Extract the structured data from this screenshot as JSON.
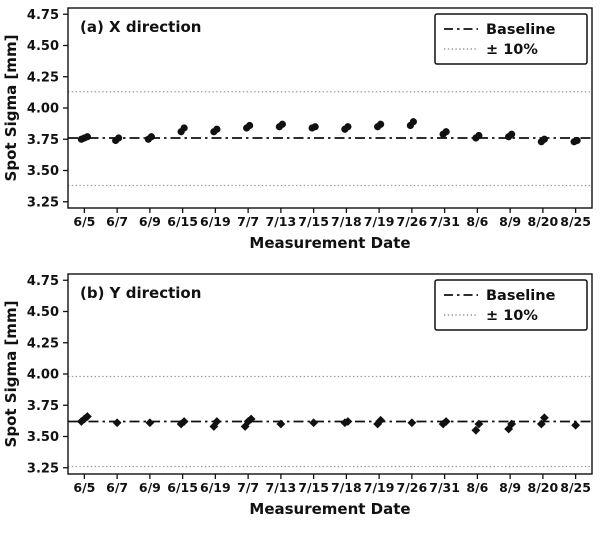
{
  "figure": {
    "background": "#ffffff",
    "text_color": "#111111",
    "marker_color": "#111111",
    "baseline_color": "#111111",
    "band_color": "#9a9a9a"
  },
  "chart_data": [
    {
      "id": "a",
      "type": "scatter",
      "panel_label": "(a) X direction",
      "marker": "circle",
      "xlabel": "Measurement Date",
      "ylabel": "Spot Sigma [mm]",
      "ylim": [
        3.2,
        4.8
      ],
      "yticks": [
        3.25,
        3.5,
        3.75,
        4.0,
        4.25,
        4.5,
        4.75
      ],
      "categories": [
        "6/5",
        "6/7",
        "6/9",
        "6/15",
        "6/19",
        "7/7",
        "7/13",
        "7/15",
        "7/18",
        "7/19",
        "7/26",
        "7/31",
        "8/6",
        "8/9",
        "8/20",
        "8/25"
      ],
      "baseline": 3.76,
      "plus10": 4.13,
      "minus10": 3.38,
      "legend": [
        {
          "label": "Baseline",
          "style": "dashdot"
        },
        {
          "label": "± 10%",
          "style": "dotted"
        }
      ],
      "points": [
        [
          0,
          3.75
        ],
        [
          0,
          3.76
        ],
        [
          0,
          3.77
        ],
        [
          1,
          3.74
        ],
        [
          1,
          3.76
        ],
        [
          2,
          3.75
        ],
        [
          2,
          3.77
        ],
        [
          3,
          3.81
        ],
        [
          3,
          3.84
        ],
        [
          4,
          3.81
        ],
        [
          4,
          3.83
        ],
        [
          5,
          3.84
        ],
        [
          5,
          3.86
        ],
        [
          6,
          3.85
        ],
        [
          6,
          3.87
        ],
        [
          7,
          3.84
        ],
        [
          7,
          3.85
        ],
        [
          8,
          3.83
        ],
        [
          8,
          3.85
        ],
        [
          9,
          3.85
        ],
        [
          9,
          3.87
        ],
        [
          10,
          3.86
        ],
        [
          10,
          3.89
        ],
        [
          11,
          3.79
        ],
        [
          11,
          3.81
        ],
        [
          12,
          3.76
        ],
        [
          12,
          3.78
        ],
        [
          13,
          3.77
        ],
        [
          13,
          3.79
        ],
        [
          14,
          3.73
        ],
        [
          14,
          3.75
        ],
        [
          15,
          3.73
        ],
        [
          15,
          3.74
        ]
      ]
    },
    {
      "id": "b",
      "type": "scatter",
      "panel_label": "(b) Y direction",
      "marker": "diamond",
      "xlabel": "Measurement Date",
      "ylabel": "Spot Sigma [mm]",
      "ylim": [
        3.2,
        4.8
      ],
      "yticks": [
        3.25,
        3.5,
        3.75,
        4.0,
        4.25,
        4.5,
        4.75
      ],
      "categories": [
        "6/5",
        "6/7",
        "6/9",
        "6/15",
        "6/19",
        "7/7",
        "7/13",
        "7/15",
        "7/18",
        "7/19",
        "7/26",
        "7/31",
        "8/6",
        "8/9",
        "8/20",
        "8/25"
      ],
      "baseline": 3.62,
      "plus10": 3.98,
      "minus10": 3.26,
      "legend": [
        {
          "label": "Baseline",
          "style": "dashdot"
        },
        {
          "label": "± 10%",
          "style": "dotted"
        }
      ],
      "points": [
        [
          0,
          3.62
        ],
        [
          0,
          3.64
        ],
        [
          0,
          3.66
        ],
        [
          1,
          3.61
        ],
        [
          2,
          3.61
        ],
        [
          3,
          3.6
        ],
        [
          3,
          3.62
        ],
        [
          4,
          3.58
        ],
        [
          4,
          3.62
        ],
        [
          5,
          3.58
        ],
        [
          5,
          3.62
        ],
        [
          5,
          3.64
        ],
        [
          6,
          3.6
        ],
        [
          7,
          3.61
        ],
        [
          8,
          3.61
        ],
        [
          8,
          3.62
        ],
        [
          9,
          3.6
        ],
        [
          9,
          3.63
        ],
        [
          10,
          3.61
        ],
        [
          11,
          3.6
        ],
        [
          11,
          3.62
        ],
        [
          12,
          3.55
        ],
        [
          12,
          3.6
        ],
        [
          13,
          3.56
        ],
        [
          13,
          3.6
        ],
        [
          14,
          3.6
        ],
        [
          14,
          3.65
        ],
        [
          15,
          3.59
        ]
      ]
    }
  ]
}
